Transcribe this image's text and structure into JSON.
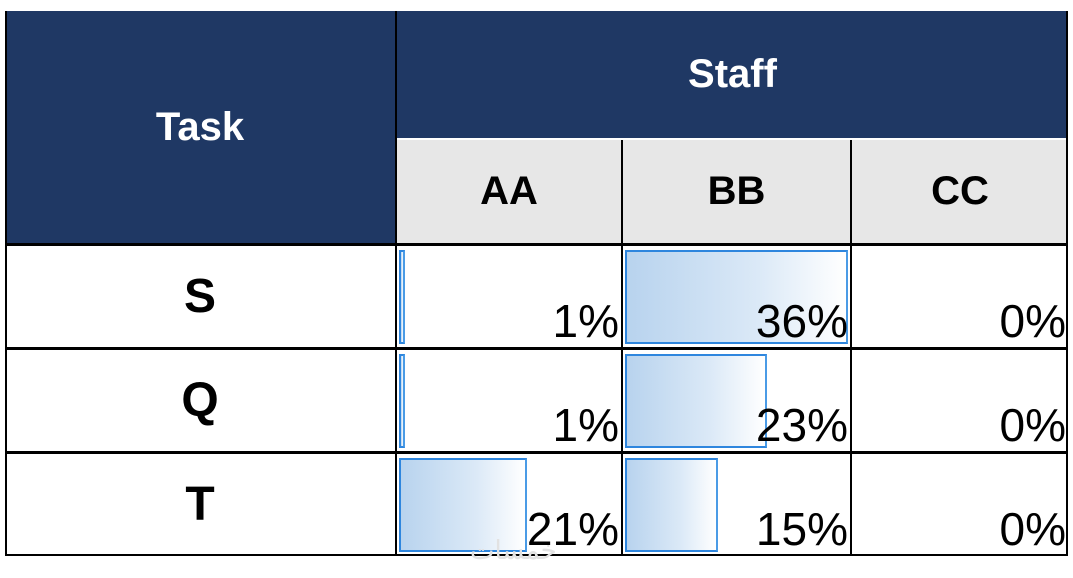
{
  "header": {
    "task_label": "Task",
    "staff_label": "Staff",
    "staff_columns": [
      "AA",
      "BB",
      "CC"
    ]
  },
  "rows": [
    {
      "task": "S",
      "cells": [
        {
          "text": "1%",
          "value": 1
        },
        {
          "text": "36%",
          "value": 36
        },
        {
          "text": "0%",
          "value": 0
        }
      ]
    },
    {
      "task": "Q",
      "cells": [
        {
          "text": "1%",
          "value": 1
        },
        {
          "text": "23%",
          "value": 23
        },
        {
          "text": "0%",
          "value": 0
        }
      ]
    },
    {
      "task": "T",
      "cells": [
        {
          "text": "21%",
          "value": 21
        },
        {
          "text": "15%",
          "value": 15
        },
        {
          "text": "0%",
          "value": 0
        }
      ]
    }
  ],
  "bar_scale_max": 36,
  "watermark": "خمسات",
  "colors": {
    "header_dark": "#1f3864",
    "header_light": "#e7e7e7",
    "bar_border": "#2e86de",
    "bar_fill": "#b8d3ee"
  }
}
